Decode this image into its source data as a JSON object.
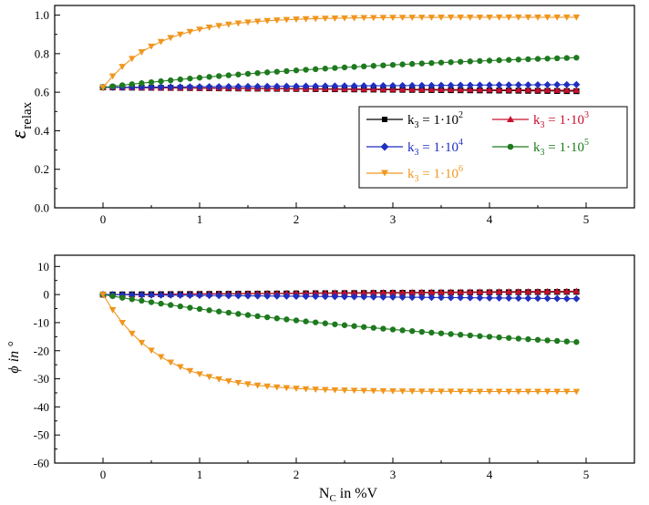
{
  "chart_data": [
    {
      "type": "line",
      "ylabel": "ε",
      "ylabel_sub": "relax",
      "xlabel": "",
      "xlim": [
        -0.5,
        5.5
      ],
      "ylim": [
        0.0,
        1.05
      ],
      "xticks": [
        0,
        1,
        2,
        3,
        4,
        5
      ],
      "xtick_labels": [
        "0",
        "1",
        "2",
        "3",
        "4",
        "5"
      ],
      "yticks": [
        0.0,
        0.2,
        0.4,
        0.6,
        0.8,
        1.0
      ],
      "ytick_labels": [
        "0.0",
        "0.2",
        "0.4",
        "0.6",
        "0.8",
        "1.0"
      ],
      "grid": false,
      "legend": {
        "placement": "center-right",
        "entries": [
          {
            "series": 0,
            "prefix": "k",
            "sub": "3",
            "mid": " = 1·10",
            "sup": "2"
          },
          {
            "series": 1,
            "prefix": "k",
            "sub": "3",
            "mid": " = 1·10",
            "sup": "3"
          },
          {
            "series": 2,
            "prefix": "k",
            "sub": "3",
            "mid": " = 1·10",
            "sup": "4"
          },
          {
            "series": 3,
            "prefix": "k",
            "sub": "3",
            "mid": " = 1·10",
            "sup": "5"
          },
          {
            "series": 4,
            "prefix": "k",
            "sub": "3",
            "mid": " = 1·10",
            "sup": "6"
          }
        ]
      },
      "x": [
        0,
        0.1,
        0.2,
        0.3,
        0.4,
        0.5,
        0.6,
        0.7,
        0.8,
        0.9,
        1.0,
        1.1,
        1.2,
        1.3,
        1.4,
        1.5,
        1.6,
        1.7,
        1.8,
        1.9,
        2.0,
        2.1,
        2.2,
        2.3,
        2.4,
        2.5,
        2.6,
        2.7,
        2.8,
        2.9,
        3.0,
        3.1,
        3.2,
        3.3,
        3.4,
        3.5,
        3.6,
        3.7,
        3.8,
        3.9,
        4.0,
        4.1,
        4.2,
        4.3,
        4.4,
        4.5,
        4.6,
        4.7,
        4.8,
        4.9
      ],
      "series": [
        {
          "name": "k3 = 1·10^2",
          "color": "#000000",
          "marker": "square",
          "values": [
            0.625,
            0.6246,
            0.6242,
            0.6238,
            0.6234,
            0.623,
            0.6226,
            0.6222,
            0.6218,
            0.6214,
            0.621,
            0.6206,
            0.6202,
            0.6198,
            0.6194,
            0.619,
            0.6186,
            0.6182,
            0.6178,
            0.6174,
            0.617,
            0.6166,
            0.6162,
            0.6158,
            0.6154,
            0.615,
            0.6146,
            0.6142,
            0.6138,
            0.6134,
            0.613,
            0.6126,
            0.6122,
            0.6118,
            0.6114,
            0.611,
            0.6106,
            0.6102,
            0.6098,
            0.6094,
            0.609,
            0.6086,
            0.6082,
            0.6078,
            0.6074,
            0.607,
            0.6066,
            0.6062,
            0.6058,
            0.6054
          ]
        },
        {
          "name": "k3 = 1·10^3",
          "color": "#c8102e",
          "marker": "triangle-up",
          "values": [
            0.625,
            0.6247,
            0.6244,
            0.6241,
            0.6238,
            0.6235,
            0.6232,
            0.6229,
            0.6226,
            0.6223,
            0.622,
            0.6217,
            0.6214,
            0.6211,
            0.6208,
            0.6205,
            0.6202,
            0.6199,
            0.6196,
            0.6193,
            0.619,
            0.6187,
            0.6184,
            0.6181,
            0.6178,
            0.6175,
            0.6172,
            0.6169,
            0.6166,
            0.6163,
            0.616,
            0.6157,
            0.6154,
            0.6151,
            0.6148,
            0.6145,
            0.6142,
            0.6139,
            0.6136,
            0.6133,
            0.613,
            0.6127,
            0.6124,
            0.6121,
            0.6118,
            0.6115,
            0.6112,
            0.6109,
            0.6106,
            0.6103
          ]
        },
        {
          "name": "k3 = 1·10^4",
          "color": "#1f2fbf",
          "marker": "diamond",
          "values": [
            0.625,
            0.6253,
            0.6256,
            0.6259,
            0.6262,
            0.6265,
            0.6268,
            0.6271,
            0.6274,
            0.6277,
            0.628,
            0.6283,
            0.6286,
            0.6289,
            0.6292,
            0.6295,
            0.6298,
            0.6301,
            0.6304,
            0.6307,
            0.631,
            0.6313,
            0.6316,
            0.6319,
            0.6322,
            0.6325,
            0.6328,
            0.6331,
            0.6334,
            0.6337,
            0.634,
            0.6343,
            0.6346,
            0.6349,
            0.6352,
            0.6355,
            0.6358,
            0.6361,
            0.6364,
            0.6367,
            0.637,
            0.6373,
            0.6376,
            0.6379,
            0.6382,
            0.6385,
            0.6388,
            0.6391,
            0.6394,
            0.6397
          ]
        },
        {
          "name": "k3 = 1·10^5",
          "color": "#1e7a1e",
          "marker": "circle",
          "values": [
            0.625,
            0.6307,
            0.6362,
            0.6416,
            0.6468,
            0.6519,
            0.6568,
            0.6616,
            0.6663,
            0.6708,
            0.6752,
            0.6795,
            0.6837,
            0.6877,
            0.6917,
            0.6955,
            0.6992,
            0.7029,
            0.7064,
            0.7098,
            0.7131,
            0.7164,
            0.7195,
            0.7226,
            0.7256,
            0.7285,
            0.7313,
            0.734,
            0.7367,
            0.7393,
            0.7419,
            0.7443,
            0.7467,
            0.7491,
            0.7513,
            0.7536,
            0.7557,
            0.7578,
            0.7599,
            0.7619,
            0.7638,
            0.7657,
            0.7675,
            0.7693,
            0.7711,
            0.7728,
            0.7744,
            0.776,
            0.7776,
            0.7791
          ]
        },
        {
          "name": "k3 = 1·10^6",
          "color": "#f0961e",
          "marker": "triangle-down",
          "values": [
            0.625,
            0.6836,
            0.7327,
            0.774,
            0.8086,
            0.8377,
            0.862,
            0.8825,
            0.8996,
            0.914,
            0.9261,
            0.9362,
            0.9447,
            0.9519,
            0.9579,
            0.9629,
            0.9671,
            0.9707,
            0.9736,
            0.9761,
            0.9782,
            0.98,
            0.9815,
            0.9827,
            0.9837,
            0.9846,
            0.9853,
            0.9859,
            0.9864,
            0.9869,
            0.9872,
            0.9875,
            0.9878,
            0.988,
            0.9882,
            0.9883,
            0.9885,
            0.9886,
            0.9887,
            0.9887,
            0.9888,
            0.9889,
            0.9889,
            0.9889,
            0.989,
            0.989,
            0.989,
            0.989,
            0.989,
            0.989
          ]
        }
      ]
    },
    {
      "type": "line",
      "ylabel": "ϕ in °",
      "xlabel": "N",
      "xlabel_sub": "C",
      "xlabel_suffix": " in %V",
      "xlim": [
        -0.5,
        5.5
      ],
      "ylim": [
        -60,
        14
      ],
      "xticks": [
        0,
        1,
        2,
        3,
        4,
        5
      ],
      "xtick_labels": [
        "0",
        "1",
        "2",
        "3",
        "4",
        "5"
      ],
      "yticks": [
        -60,
        -50,
        -40,
        -30,
        -20,
        -10,
        0,
        10
      ],
      "ytick_labels": [
        "-60",
        "-50",
        "-40",
        "-30",
        "-20",
        "-10",
        "0",
        "10"
      ],
      "grid": false,
      "x": [
        0,
        0.1,
        0.2,
        0.3,
        0.4,
        0.5,
        0.6,
        0.7,
        0.8,
        0.9,
        1.0,
        1.1,
        1.2,
        1.3,
        1.4,
        1.5,
        1.6,
        1.7,
        1.8,
        1.9,
        2.0,
        2.1,
        2.2,
        2.3,
        2.4,
        2.5,
        2.6,
        2.7,
        2.8,
        2.9,
        3.0,
        3.1,
        3.2,
        3.3,
        3.4,
        3.5,
        3.6,
        3.7,
        3.8,
        3.9,
        4.0,
        4.1,
        4.2,
        4.3,
        4.4,
        4.5,
        4.6,
        4.7,
        4.8,
        4.9
      ],
      "series": [
        {
          "name": "k3 = 1·10^2",
          "color": "#000000",
          "marker": "square",
          "values": [
            0,
            0.02,
            0.04,
            0.06,
            0.08,
            0.1,
            0.12,
            0.14,
            0.16,
            0.18,
            0.2,
            0.22,
            0.24,
            0.26,
            0.28,
            0.3,
            0.32,
            0.34,
            0.36,
            0.38,
            0.4,
            0.42,
            0.44,
            0.46,
            0.48,
            0.5,
            0.52,
            0.54,
            0.56,
            0.58,
            0.6,
            0.62,
            0.64,
            0.66,
            0.68,
            0.7,
            0.72,
            0.74,
            0.76,
            0.78,
            0.8,
            0.82,
            0.84,
            0.86,
            0.88,
            0.9,
            0.92,
            0.94,
            0.96,
            0.98
          ]
        },
        {
          "name": "k3 = 1·10^3",
          "color": "#c8102e",
          "marker": "triangle-up",
          "values": [
            0,
            0.025,
            0.05,
            0.075,
            0.1,
            0.125,
            0.15,
            0.175,
            0.2,
            0.225,
            0.25,
            0.275,
            0.3,
            0.325,
            0.35,
            0.375,
            0.4,
            0.425,
            0.45,
            0.475,
            0.5,
            0.525,
            0.55,
            0.575,
            0.6,
            0.625,
            0.65,
            0.675,
            0.7,
            0.725,
            0.75,
            0.775,
            0.8,
            0.825,
            0.85,
            0.875,
            0.9,
            0.925,
            0.95,
            0.975,
            1.0,
            1.025,
            1.05,
            1.075,
            1.1,
            1.125,
            1.15,
            1.175,
            1.2,
            1.225
          ]
        },
        {
          "name": "k3 = 1·10^4",
          "color": "#1f2fbf",
          "marker": "diamond",
          "values": [
            0,
            -0.03,
            -0.06,
            -0.09,
            -0.12,
            -0.15,
            -0.18,
            -0.21,
            -0.24,
            -0.27,
            -0.3,
            -0.33,
            -0.36,
            -0.39,
            -0.42,
            -0.45,
            -0.48,
            -0.51,
            -0.54,
            -0.57,
            -0.6,
            -0.63,
            -0.66,
            -0.69,
            -0.72,
            -0.75,
            -0.78,
            -0.81,
            -0.84,
            -0.87,
            -0.9,
            -0.93,
            -0.96,
            -0.99,
            -1.02,
            -1.05,
            -1.08,
            -1.11,
            -1.14,
            -1.17,
            -1.2,
            -1.23,
            -1.26,
            -1.29,
            -1.32,
            -1.35,
            -1.38,
            -1.41,
            -1.44,
            -1.47
          ]
        },
        {
          "name": "k3 = 1·10^5",
          "color": "#1e7a1e",
          "marker": "circle",
          "values": [
            0,
            -0.57,
            -1.13,
            -1.67,
            -2.2,
            -2.72,
            -3.23,
            -3.72,
            -4.21,
            -4.68,
            -5.14,
            -5.59,
            -6.03,
            -6.46,
            -6.88,
            -7.29,
            -7.69,
            -8.08,
            -8.46,
            -8.84,
            -9.2,
            -9.56,
            -9.91,
            -10.25,
            -10.59,
            -10.91,
            -11.23,
            -11.55,
            -11.85,
            -12.15,
            -12.44,
            -12.73,
            -13.0,
            -13.28,
            -13.54,
            -13.8,
            -14.06,
            -14.31,
            -14.55,
            -14.79,
            -15.02,
            -15.25,
            -15.47,
            -15.69,
            -15.9,
            -16.11,
            -16.31,
            -16.51,
            -16.71,
            -16.9
          ]
        },
        {
          "name": "k3 = 1·10^6",
          "color": "#f0961e",
          "marker": "triangle-down",
          "values": [
            0,
            -5.44,
            -10.02,
            -13.88,
            -17.13,
            -19.87,
            -22.17,
            -24.12,
            -25.76,
            -27.14,
            -28.3,
            -29.28,
            -30.11,
            -30.81,
            -31.4,
            -31.9,
            -32.32,
            -32.67,
            -32.97,
            -33.22,
            -33.43,
            -33.61,
            -33.76,
            -33.88,
            -33.99,
            -34.08,
            -34.16,
            -34.22,
            -34.27,
            -34.32,
            -34.35,
            -34.39,
            -34.41,
            -34.44,
            -34.46,
            -34.47,
            -34.48,
            -34.5,
            -34.51,
            -34.51,
            -34.52,
            -34.52,
            -34.53,
            -34.53,
            -34.54,
            -34.54,
            -34.54,
            -34.54,
            -34.54,
            -34.55
          ]
        }
      ]
    }
  ]
}
